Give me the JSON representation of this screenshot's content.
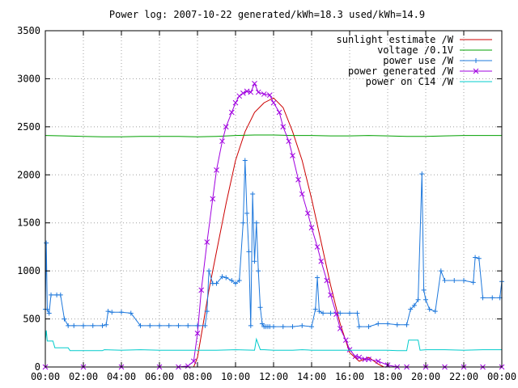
{
  "chart_data": {
    "type": "line",
    "title": "Power log: 2007-10-22 generated/kWh=18.3 used/kWh=14.9",
    "xlabel": "",
    "ylabel": "",
    "x_ticks": [
      "00:00",
      "02:00",
      "04:00",
      "06:00",
      "08:00",
      "10:00",
      "12:00",
      "14:00",
      "16:00",
      "18:00",
      "20:00",
      "22:00",
      "00:00"
    ],
    "xlim_hours": [
      0,
      24
    ],
    "ylim": [
      0,
      3500
    ],
    "y_ticks": [
      0,
      500,
      1000,
      1500,
      2000,
      2500,
      3000,
      3500
    ],
    "grid": true,
    "legend_position": "top-right",
    "series": [
      {
        "name": "sunlight estimate /W",
        "color": "#cc0000",
        "marker": "none",
        "x": [
          7.8,
          8.0,
          8.3,
          8.6,
          9.0,
          9.5,
          10.0,
          10.5,
          11.0,
          11.5,
          12.0,
          12.5,
          13.0,
          13.5,
          14.0,
          14.5,
          15.0,
          15.5,
          16.0,
          16.5,
          17.0,
          17.5,
          17.8
        ],
        "y": [
          0,
          100,
          450,
          800,
          1200,
          1700,
          2150,
          2450,
          2650,
          2750,
          2800,
          2700,
          2450,
          2150,
          1750,
          1300,
          850,
          450,
          150,
          60,
          100,
          30,
          0
        ]
      },
      {
        "name": "voltage /0.1V",
        "color": "#00a000",
        "marker": "none",
        "x": [
          0,
          1,
          2,
          3,
          4,
          5,
          6,
          7,
          8,
          9,
          10,
          11,
          12,
          13,
          14,
          15,
          16,
          17,
          18,
          19,
          20,
          21,
          22,
          23,
          24
        ],
        "y": [
          2410,
          2405,
          2400,
          2395,
          2395,
          2400,
          2400,
          2400,
          2395,
          2400,
          2410,
          2415,
          2415,
          2410,
          2410,
          2405,
          2405,
          2410,
          2405,
          2400,
          2400,
          2405,
          2410,
          2410,
          2410
        ]
      },
      {
        "name": "power use /W",
        "color": "#1e78dc",
        "marker": "plus",
        "x": [
          0,
          0.05,
          0.1,
          0.2,
          0.3,
          0.6,
          0.8,
          1.0,
          1.2,
          1.5,
          2.0,
          2.5,
          3.0,
          3.2,
          3.3,
          3.5,
          4.0,
          4.5,
          5.0,
          5.5,
          6.0,
          6.5,
          7.0,
          7.5,
          8.0,
          8.4,
          8.5,
          8.6,
          8.8,
          9.0,
          9.3,
          9.5,
          9.8,
          10.0,
          10.2,
          10.4,
          10.5,
          10.6,
          10.7,
          10.8,
          10.9,
          11.0,
          11.1,
          11.2,
          11.3,
          11.4,
          11.5,
          11.6,
          11.7,
          11.8,
          12.0,
          12.5,
          13.0,
          13.5,
          14.0,
          14.2,
          14.3,
          14.4,
          14.6,
          15.0,
          15.5,
          16.0,
          16.4,
          16.5,
          17.0,
          17.5,
          18.0,
          18.5,
          19.0,
          19.2,
          19.4,
          19.6,
          19.8,
          19.9,
          20.0,
          20.2,
          20.5,
          20.8,
          21.0,
          21.5,
          22.0,
          22.5,
          22.6,
          22.8,
          23.0,
          23.5,
          23.9,
          24.0
        ],
        "y": [
          600,
          1290,
          600,
          560,
          750,
          750,
          750,
          500,
          430,
          430,
          430,
          430,
          430,
          440,
          580,
          570,
          570,
          560,
          430,
          430,
          430,
          430,
          430,
          430,
          430,
          430,
          580,
          1000,
          870,
          870,
          940,
          930,
          900,
          870,
          900,
          1500,
          2150,
          1600,
          1200,
          430,
          1800,
          1100,
          1500,
          1000,
          620,
          450,
          420,
          420,
          420,
          420,
          420,
          420,
          420,
          430,
          420,
          600,
          930,
          580,
          560,
          560,
          560,
          560,
          560,
          420,
          420,
          450,
          450,
          440,
          440,
          600,
          640,
          700,
          2010,
          800,
          700,
          600,
          580,
          1000,
          900,
          900,
          900,
          880,
          1140,
          1130,
          720,
          720,
          720,
          890
        ]
      },
      {
        "name": "power generated /W",
        "color": "#a000e0",
        "marker": "x",
        "x": [
          0,
          2,
          4,
          6,
          7,
          7.5,
          7.8,
          8.0,
          8.2,
          8.5,
          8.8,
          9.0,
          9.3,
          9.5,
          9.8,
          10.0,
          10.2,
          10.4,
          10.6,
          10.8,
          11.0,
          11.2,
          11.5,
          11.8,
          12.0,
          12.3,
          12.5,
          12.8,
          13.0,
          13.3,
          13.5,
          13.8,
          14.0,
          14.3,
          14.5,
          14.8,
          15.0,
          15.3,
          15.5,
          15.8,
          16.0,
          16.3,
          16.5,
          16.8,
          17.0,
          17.5,
          18.0,
          18.5,
          19,
          20,
          21,
          22,
          23,
          24
        ],
        "y": [
          0,
          0,
          0,
          0,
          0,
          10,
          60,
          350,
          800,
          1300,
          1750,
          2050,
          2350,
          2500,
          2650,
          2750,
          2820,
          2850,
          2870,
          2860,
          2950,
          2860,
          2840,
          2830,
          2750,
          2650,
          2500,
          2350,
          2200,
          1950,
          1800,
          1600,
          1450,
          1250,
          1100,
          900,
          750,
          550,
          400,
          280,
          180,
          110,
          100,
          80,
          80,
          60,
          20,
          0,
          0,
          0,
          0,
          0,
          0,
          0
        ]
      },
      {
        "name": "power on C14 /W",
        "color": "#00cccc",
        "marker": "none",
        "x": [
          0,
          0.05,
          0.1,
          0.4,
          0.5,
          1.2,
          1.3,
          3.0,
          3.1,
          4.0,
          5.0,
          6.0,
          6.2,
          7.0,
          8.0,
          9.0,
          10.0,
          11.0,
          11.1,
          11.3,
          11.5,
          12.0,
          13.0,
          13.5,
          14.0,
          15.0,
          16.0,
          17.0,
          18.0,
          18.5,
          19.0,
          19.1,
          19.6,
          19.7,
          20.0,
          21.0,
          22.0,
          23.0,
          24.0
        ],
        "y": [
          270,
          380,
          270,
          270,
          200,
          200,
          170,
          170,
          180,
          175,
          180,
          175,
          175,
          175,
          175,
          175,
          180,
          175,
          290,
          180,
          180,
          175,
          175,
          180,
          175,
          175,
          175,
          175,
          175,
          170,
          170,
          280,
          280,
          175,
          180,
          180,
          175,
          180,
          180
        ]
      }
    ]
  }
}
